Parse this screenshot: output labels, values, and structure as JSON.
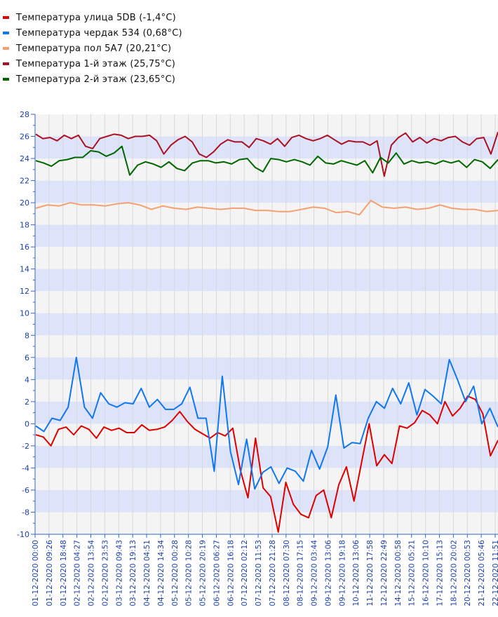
{
  "chart_data": {
    "type": "line",
    "title": "",
    "xlabel": "",
    "ylabel": "",
    "ylim": [
      -10,
      28
    ],
    "yticks": [
      -10,
      -8,
      -6,
      -4,
      -2,
      0,
      2,
      4,
      6,
      8,
      10,
      12,
      14,
      16,
      18,
      20,
      22,
      24,
      26,
      28
    ],
    "x_tick_labels": [
      "01-12-2020 00:00",
      "01-12-2020 09:26",
      "01-12-2020 18:48",
      "02-12-2020 04:27",
      "02-12-2020 13:54",
      "02-12-2020 23:53",
      "03-12-2020 09:43",
      "03-12-2020 19:13",
      "04-12-2020 04:51",
      "04-12-2020 14:34",
      "05-12-2020 00:28",
      "05-12-2020 10:28",
      "05-12-2020 20:19",
      "06-12-2020 06:27",
      "06-12-2020 16:18",
      "07-12-2020 02:12",
      "07-12-2020 11:53",
      "07-12-2020 21:28",
      "08-12-2020 07:30",
      "08-12-2020 17:15",
      "09-12-2020 03:44",
      "09-12-2020 13:06",
      "09-12-2020 19:18",
      "10-12-2020 13:06",
      "11-12-2020 17:58",
      "12-12-2020 22:49",
      "14-12-2020 00:58",
      "15-12-2020 05:21",
      "16-12-2020 10:10",
      "17-12-2020 15:13",
      "18-12-2020 20:02",
      "20-12-2020 00:53",
      "21-12-2020 05:46",
      "22-12-2020 11:51"
    ],
    "legend_position": "top-left",
    "series": [
      {
        "name": "Температура улица 5DB (-1,4°C)",
        "color": "#dd0000",
        "values": [
          -1,
          -1.2,
          -2,
          -0.5,
          -0.3,
          -1,
          -0.2,
          -0.5,
          -1.3,
          -0.3,
          -0.6,
          -0.4,
          -0.8,
          -0.8,
          -0.1,
          -0.6,
          -0.5,
          -0.3,
          0.3,
          1.1,
          0.2,
          -0.5,
          -0.9,
          -1.3,
          -0.8,
          -1.1,
          -0.4,
          -4.2,
          -6.7,
          -1.3,
          -5.8,
          -6.6,
          -9.8,
          -5.3,
          -7.3,
          -8.2,
          -8.5,
          -6.5,
          -6,
          -8.5,
          -5.5,
          -3.9,
          -7,
          -3.5,
          0,
          -3.8,
          -2.8,
          -3.6,
          -0.2,
          -0.4,
          0.1,
          1.2,
          0.8,
          0,
          2,
          0.7,
          1.4,
          2.5,
          2.2,
          0.9,
          -2.9,
          -1.5
        ]
      },
      {
        "name": "Температура чердак 534 (0,68°C)",
        "color": "#1177ee",
        "values": [
          -0.2,
          -0.7,
          0.5,
          0.3,
          1.5,
          6,
          1.5,
          0.5,
          2.8,
          1.8,
          1.5,
          1.9,
          1.8,
          3.2,
          1.5,
          2.2,
          1.3,
          1.3,
          1.8,
          3.3,
          0.5,
          0.5,
          -4.3,
          4.3,
          -2.5,
          -5.5,
          -1.4,
          -5.9,
          -4.4,
          -3.9,
          -5.4,
          -4,
          -4.3,
          -5.2,
          -2.4,
          -4.1,
          -2.1,
          2.6,
          -2.2,
          -1.7,
          -1.8,
          0.5,
          2,
          1.4,
          3.2,
          1.8,
          3.7,
          0.8,
          3.1,
          2.5,
          1.8,
          5.8,
          4,
          2,
          3.4,
          0,
          1.4,
          -0.3
        ]
      },
      {
        "name": "Температура пол 5A7 (20,21°C)",
        "color": "#f4a070",
        "values": [
          19.5,
          19.8,
          19.7,
          20,
          19.8,
          19.8,
          19.7,
          19.9,
          20,
          19.8,
          19.4,
          19.7,
          19.5,
          19.4,
          19.6,
          19.5,
          19.4,
          19.5,
          19.5,
          19.3,
          19.3,
          19.2,
          19.2,
          19.4,
          19.6,
          19.5,
          19.1,
          19.2,
          18.9,
          20.2,
          19.6,
          19.5,
          19.6,
          19.4,
          19.5,
          19.8,
          19.5,
          19.4,
          19.4,
          19.2,
          19.3
        ]
      },
      {
        "name": "Температура 1-й этаж (25,75°C)",
        "color": "#aa1122",
        "values": [
          26.2,
          25.8,
          25.9,
          25.6,
          26.1,
          25.8,
          26.1,
          25.1,
          24.9,
          25.8,
          26,
          26.2,
          26.1,
          25.8,
          26,
          26,
          26.1,
          25.6,
          24.4,
          25.2,
          25.7,
          26,
          25.5,
          24.4,
          24.1,
          24.6,
          25.3,
          25.7,
          25.5,
          25.5,
          25,
          25.8,
          25.6,
          25.3,
          25.8,
          25.1,
          25.9,
          26.1,
          25.8,
          25.6,
          25.8,
          26.1,
          25.7,
          25.3,
          25.6,
          25.5,
          25.5,
          25.2,
          25.6,
          22.4,
          25.2,
          25.9,
          26.3,
          25.5,
          25.9,
          25.4,
          25.8,
          25.6,
          25.9,
          26,
          25.5,
          25.2,
          25.8,
          25.9,
          24.4,
          26.4
        ]
      },
      {
        "name": "Температура 2-й этаж (23,65°C)",
        "color": "#006600",
        "values": [
          23.8,
          23.6,
          23.3,
          23.8,
          23.9,
          24.1,
          24.1,
          24.7,
          24.6,
          24.2,
          24.5,
          25.1,
          22.5,
          23.4,
          23.7,
          23.5,
          23.2,
          23.7,
          23.1,
          22.9,
          23.6,
          23.8,
          23.8,
          23.6,
          23.7,
          23.5,
          23.9,
          24,
          23.2,
          22.8,
          24,
          23.9,
          23.7,
          23.9,
          23.7,
          23.4,
          24.2,
          23.6,
          23.5,
          23.8,
          23.6,
          23.4,
          23.8,
          22.7,
          24.1,
          23.6,
          24.5,
          23.5,
          23.8,
          23.6,
          23.7,
          23.5,
          23.8,
          23.6,
          23.8,
          23.2,
          23.9,
          23.7,
          23.1,
          23.9
        ]
      }
    ]
  }
}
